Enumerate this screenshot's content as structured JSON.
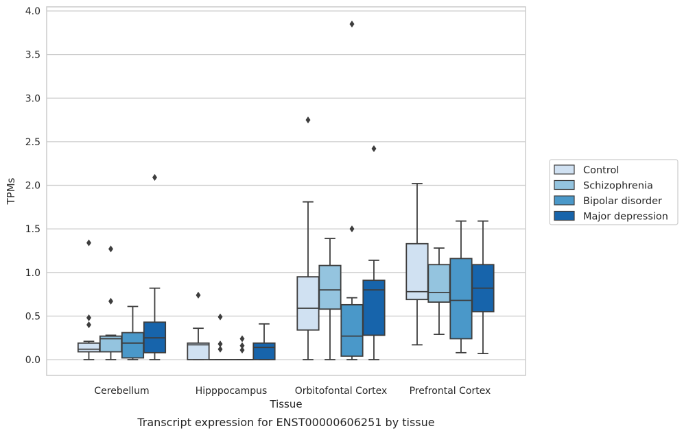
{
  "chart_data": {
    "type": "box",
    "title": "",
    "caption": "Transcript expression for ENST00000606251 by tissue",
    "xlabel": "Tissue",
    "ylabel": "TPMs",
    "ylim": [
      -0.18,
      4.05
    ],
    "yticks": [
      "0.0",
      "0.5",
      "1.0",
      "1.5",
      "2.0",
      "2.5",
      "3.0",
      "3.5",
      "4.0"
    ],
    "ytick_values": [
      0,
      0.5,
      1.0,
      1.5,
      2.0,
      2.5,
      3.0,
      3.5,
      4.0
    ],
    "grid": "horizontal",
    "legend_position": "right",
    "categories": [
      "Cerebellum",
      "Hipppocampus",
      "Orbitofontal Cortex",
      "Prefrontal Cortex"
    ],
    "series": [
      {
        "name": "Control",
        "color": "#d0e1f2",
        "boxes": [
          {
            "min": 0.0,
            "q1": 0.09,
            "median": 0.12,
            "q3": 0.19,
            "max": 0.21,
            "outliers": [
              1.34,
              0.48,
              0.4
            ]
          },
          {
            "min": 0.0,
            "q1": 0.0,
            "median": 0.17,
            "q3": 0.19,
            "max": 0.36,
            "outliers": [
              0.74
            ]
          },
          {
            "min": 0.0,
            "q1": 0.34,
            "median": 0.59,
            "q3": 0.95,
            "max": 1.81,
            "outliers": [
              2.75
            ]
          },
          {
            "min": 0.17,
            "q1": 0.69,
            "median": 0.78,
            "q3": 1.33,
            "max": 2.02,
            "outliers": []
          }
        ]
      },
      {
        "name": "Schizophrenia",
        "color": "#94c4df",
        "boxes": [
          {
            "min": 0.0,
            "q1": 0.09,
            "median": 0.24,
            "q3": 0.27,
            "max": 0.28,
            "outliers": [
              1.27,
              0.67
            ]
          },
          {
            "min": 0.0,
            "q1": 0.0,
            "median": 0.0,
            "q3": 0.0,
            "max": 0.0,
            "outliers": [
              0.49,
              0.18,
              0.12
            ]
          },
          {
            "min": 0.0,
            "q1": 0.58,
            "median": 0.8,
            "q3": 1.08,
            "max": 1.39,
            "outliers": []
          },
          {
            "min": 0.29,
            "q1": 0.66,
            "median": 0.77,
            "q3": 1.09,
            "max": 1.28,
            "outliers": []
          }
        ]
      },
      {
        "name": "Bipolar disorder",
        "color": "#4a98c9",
        "boxes": [
          {
            "min": 0.0,
            "q1": 0.02,
            "median": 0.19,
            "q3": 0.31,
            "max": 0.61,
            "outliers": []
          },
          {
            "min": 0.0,
            "q1": 0.0,
            "median": 0.0,
            "q3": 0.0,
            "max": 0.0,
            "outliers": [
              0.24,
              0.16,
              0.11
            ]
          },
          {
            "min": 0.0,
            "q1": 0.04,
            "median": 0.27,
            "q3": 0.63,
            "max": 0.71,
            "outliers": [
              3.85,
              1.5
            ]
          },
          {
            "min": 0.08,
            "q1": 0.24,
            "median": 0.68,
            "q3": 1.16,
            "max": 1.59,
            "outliers": []
          }
        ]
      },
      {
        "name": "Major depression",
        "color": "#1764ab",
        "boxes": [
          {
            "min": 0.0,
            "q1": 0.08,
            "median": 0.25,
            "q3": 0.43,
            "max": 0.82,
            "outliers": [
              2.09
            ]
          },
          {
            "min": 0.0,
            "q1": 0.0,
            "median": 0.14,
            "q3": 0.19,
            "max": 0.41,
            "outliers": []
          },
          {
            "min": 0.0,
            "q1": 0.28,
            "median": 0.8,
            "q3": 0.91,
            "max": 1.14,
            "outliers": [
              2.42
            ]
          },
          {
            "min": 0.07,
            "q1": 0.55,
            "median": 0.82,
            "q3": 1.09,
            "max": 1.59,
            "outliers": []
          }
        ]
      }
    ]
  }
}
